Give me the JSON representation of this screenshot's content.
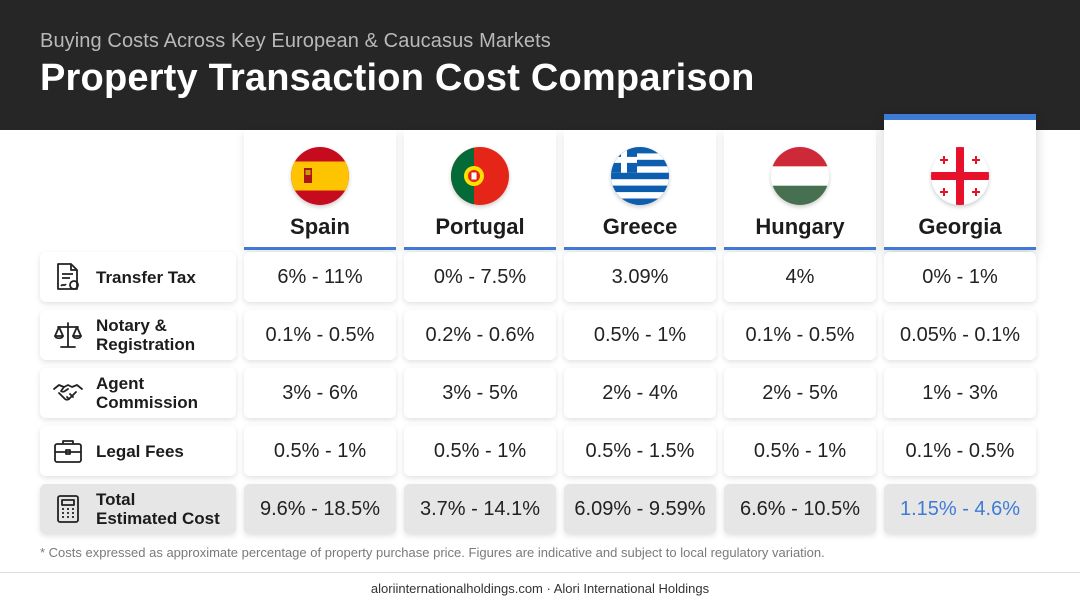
{
  "header": {
    "subtitle": "Buying Costs Across Key European & Caucasus Markets",
    "title": "Property Transaction Cost Comparison"
  },
  "accent_color": "#3f7bd6",
  "columns": [
    {
      "name": "Spain",
      "flag_icon": "spain-flag-icon"
    },
    {
      "name": "Portugal",
      "flag_icon": "portugal-flag-icon"
    },
    {
      "name": "Greece",
      "flag_icon": "greece-flag-icon"
    },
    {
      "name": "Hungary",
      "flag_icon": "hungary-flag-icon"
    },
    {
      "name": "Georgia",
      "flag_icon": "georgia-flag-icon",
      "highlighted": true
    }
  ],
  "rows": [
    {
      "label": "Transfer Tax",
      "icon": "document-stamp-icon",
      "values": [
        "6% - 11%",
        "0% - 7.5%",
        "3.09%",
        "4%",
        "0% - 1%"
      ]
    },
    {
      "label_line1": "Notary &",
      "label_line2": "Registration",
      "icon": "scales-icon",
      "values": [
        "0.1% - 0.5%",
        "0.2% - 0.6%",
        "0.5% - 1%",
        "0.1% - 0.5%",
        "0.05% - 0.1%"
      ]
    },
    {
      "label_line1": "Agent",
      "label_line2": "Commission",
      "icon": "handshake-icon",
      "values": [
        "3% - 6%",
        "3% - 5%",
        "2% - 4%",
        "2% - 5%",
        "1% - 3%"
      ]
    },
    {
      "label": "Legal Fees",
      "icon": "briefcase-icon",
      "values": [
        "0.5% - 1%",
        "0.5% - 1%",
        "0.5% - 1.5%",
        "0.5% - 1%",
        "0.1% - 0.5%"
      ]
    },
    {
      "label_line1": "Total",
      "label_line2": "Estimated Cost",
      "icon": "calculator-icon",
      "values": [
        "9.6% - 18.5%",
        "3.7% - 14.1%",
        "6.09% - 9.59%",
        "6.6% - 10.5%",
        "1.15% - 4.6%"
      ]
    }
  ],
  "footnote": "* Costs expressed as approximate percentage of property purchase price. Figures are indicative and subject to local regulatory variation.",
  "footer": "aloriinternationalholdings.com · Alori International Holdings"
}
